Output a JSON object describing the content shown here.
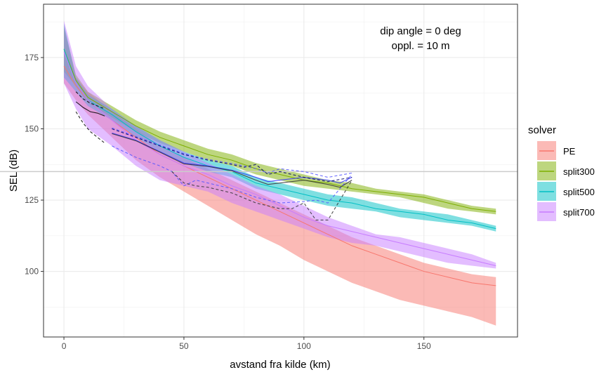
{
  "chart_data": {
    "type": "area",
    "title": "",
    "xlabel": "avstand fra kilde (km)",
    "ylabel": "SEL (dB)",
    "xlim": [
      -8.5,
      189
    ],
    "ylim": [
      77,
      193.7
    ],
    "x_ticks": [
      0,
      50,
      100,
      150
    ],
    "y_ticks": [
      100,
      125,
      150,
      175
    ],
    "grid": true,
    "reference_hline": 135,
    "annotation": [
      "dip angle = 0 deg",
      "oppl. = 10 m"
    ],
    "legend": {
      "title": "solver",
      "placement": "right"
    },
    "x": [
      0,
      5,
      10,
      20,
      30,
      40,
      50,
      60,
      70,
      80,
      90,
      100,
      110,
      120,
      130,
      140,
      150,
      160,
      170,
      180
    ],
    "series": [
      {
        "name": "PE",
        "color": "#F8766D",
        "mid": [
          172,
          165,
          160,
          153,
          147,
          141,
          137,
          133,
          129,
          125,
          121,
          117,
          113,
          109,
          106,
          103,
          100,
          98,
          96,
          95
        ],
        "low": [
          166,
          160,
          155,
          147,
          139,
          133,
          128,
          123,
          118,
          113,
          109,
          104,
          100,
          96,
          93,
          90,
          88,
          86,
          84,
          81
        ],
        "high": [
          185,
          168,
          163,
          156,
          150,
          144,
          140,
          136,
          132,
          128,
          124,
          120,
          116,
          112,
          109,
          106,
          103,
          101,
          99,
          98
        ]
      },
      {
        "name": "split300",
        "color": "#7CAE00",
        "mid": [
          178,
          167,
          161,
          156,
          151,
          147,
          144,
          141,
          139,
          136,
          134,
          132,
          131,
          129,
          128,
          127,
          126,
          124,
          122,
          121
        ],
        "low": [
          170,
          165,
          159,
          154,
          149,
          145,
          142,
          139,
          137,
          134,
          132,
          130,
          129,
          128,
          127,
          126,
          124,
          122,
          121,
          120
        ],
        "high": [
          186,
          169,
          163,
          158,
          153,
          149,
          146,
          143,
          141,
          138,
          136,
          134,
          132,
          131,
          129,
          128,
          127,
          125,
          123,
          122
        ]
      },
      {
        "name": "split500",
        "color": "#00BFC4",
        "mid": [
          178,
          166,
          160,
          155,
          149,
          144,
          140,
          137,
          135,
          131,
          129,
          127,
          125,
          124,
          122,
          121,
          120,
          118,
          117,
          115
        ],
        "low": [
          168,
          163,
          158,
          153,
          147,
          142,
          138,
          135,
          133,
          129,
          127,
          125,
          123,
          122,
          121,
          119,
          118,
          117,
          116,
          114
        ],
        "high": [
          187,
          168,
          162,
          157,
          151,
          146,
          142,
          139,
          137,
          133,
          131,
          129,
          127,
          126,
          124,
          122,
          121,
          120,
          118,
          116
        ]
      },
      {
        "name": "split700",
        "color": "#C77CFF",
        "mid": [
          177,
          166,
          160,
          153,
          146,
          141,
          137,
          134,
          130,
          127,
          123,
          119,
          116,
          114,
          112,
          110,
          108,
          106,
          104,
          102
        ],
        "low": [
          166,
          157,
          150,
          144,
          137,
          132,
          130,
          128,
          124,
          121,
          118,
          115,
          112,
          110,
          109,
          107,
          105,
          103,
          102,
          101
        ],
        "high": [
          188,
          172,
          165,
          157,
          151,
          146,
          142,
          138,
          134,
          130,
          127,
          123,
          119,
          116,
          113,
          112,
          110,
          108,
          106,
          103
        ]
      }
    ],
    "measurements": [
      {
        "color": "#000000",
        "dash": false,
        "x": [
          5,
          8,
          11,
          14,
          17
        ],
        "y": [
          159.5,
          157.5,
          156,
          155.5,
          154.5
        ]
      },
      {
        "color": "#000000",
        "dash": true,
        "x": [
          5,
          8,
          11,
          14,
          17
        ],
        "y": [
          163,
          160.5,
          159,
          158,
          157
        ]
      },
      {
        "color": "#000000",
        "dash": true,
        "x": [
          5,
          8,
          11,
          14,
          17
        ],
        "y": [
          156,
          152,
          149,
          147,
          145
        ]
      },
      {
        "color": "#3333FF",
        "dash": false,
        "x": [
          20,
          30,
          40,
          50,
          60,
          70,
          80,
          85,
          90,
          100,
          110,
          115,
          120
        ],
        "y": [
          148.5,
          146,
          142,
          138,
          137,
          135.5,
          133,
          131.5,
          132,
          133,
          132,
          131,
          133
        ]
      },
      {
        "color": "#333333",
        "dash": false,
        "x": [
          20,
          30,
          40,
          50,
          60,
          70,
          80,
          85,
          90,
          100,
          110,
          115,
          120
        ],
        "y": [
          148.3,
          145.8,
          141.8,
          137.7,
          136.8,
          135.3,
          132,
          130.5,
          131,
          132,
          130.5,
          129.5,
          132
        ]
      },
      {
        "color": "#000066",
        "dash": true,
        "x": [
          20,
          30,
          40,
          50,
          60,
          70,
          75,
          80,
          85,
          90,
          100,
          110,
          120
        ],
        "y": [
          150,
          147,
          144,
          141,
          139,
          137.5,
          136.5,
          137.5,
          134,
          135,
          133,
          131.5,
          133
        ]
      },
      {
        "color": "#5555FF",
        "dash": true,
        "x": [
          20,
          30,
          40,
          50,
          60,
          70,
          75,
          80,
          85,
          90,
          100,
          110,
          120
        ],
        "y": [
          150.3,
          147.3,
          144.3,
          141.3,
          139.3,
          137.8,
          137,
          136,
          134.5,
          136,
          135,
          133,
          134.5
        ]
      },
      {
        "color": "#5555FF",
        "dash": true,
        "x": [
          20,
          30,
          40,
          45,
          50,
          55,
          60,
          70,
          80,
          90,
          100,
          105,
          110,
          120
        ],
        "y": [
          144,
          140,
          137,
          135,
          130,
          132,
          131,
          129,
          126,
          124,
          124.5,
          125,
          124,
          134
        ]
      },
      {
        "color": "#333333",
        "dash": true,
        "x": [
          45,
          50,
          55,
          60,
          70,
          80,
          90,
          95,
          100,
          105,
          110,
          120
        ],
        "y": [
          135,
          131,
          130,
          129.5,
          127.5,
          124,
          122,
          122,
          124,
          118,
          118,
          132
        ]
      }
    ]
  }
}
